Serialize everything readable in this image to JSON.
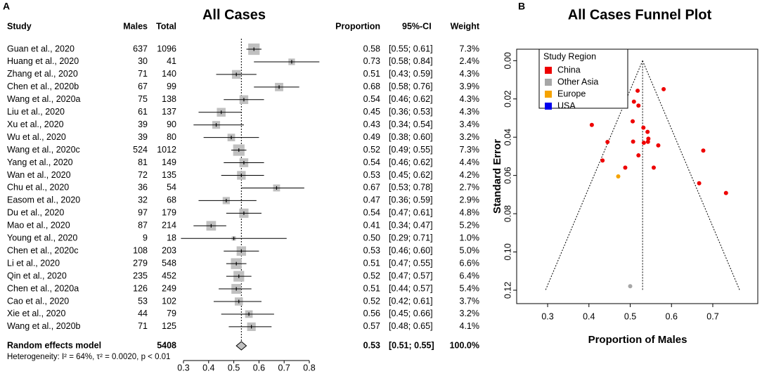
{
  "chart_data": [
    {
      "type": "forest",
      "panel": "A",
      "title": "All Cases",
      "columns": {
        "study": "Study",
        "males": "Males",
        "total": "Total",
        "proportion": "Proportion",
        "ci": "95%-CI",
        "weight": "Weight"
      },
      "categories": [
        "Guan et al., 2020",
        "Huang et al., 2020",
        "Zhang et al., 2020",
        "Chen et al., 2020b",
        "Wang et al., 2020a",
        "Liu et al., 2020",
        "Xu et al., 2020",
        "Wu et al., 2020",
        "Wang et al., 2020c",
        "Yang et al., 2020",
        "Wan et al., 2020",
        "Chu et al., 2020",
        "Easom et al., 2020",
        "Du et al., 2020",
        "Mao et al., 2020",
        "Young et al., 2020",
        "Chen et al., 2020c",
        "Li et al., 2020",
        "Qin et al., 2020",
        "Chen et al., 2020a",
        "Cao et al., 2020",
        "Xie et al., 2020",
        "Wang et al., 2020b"
      ],
      "males": [
        637,
        30,
        71,
        67,
        75,
        61,
        39,
        39,
        524,
        81,
        72,
        36,
        32,
        97,
        87,
        9,
        108,
        279,
        235,
        126,
        53,
        44,
        71
      ],
      "totals": [
        1096,
        41,
        140,
        99,
        138,
        137,
        90,
        80,
        1012,
        149,
        135,
        54,
        68,
        179,
        214,
        18,
        203,
        548,
        452,
        249,
        102,
        79,
        125
      ],
      "values": [
        0.58,
        0.73,
        0.51,
        0.68,
        0.54,
        0.45,
        0.43,
        0.49,
        0.52,
        0.54,
        0.53,
        0.67,
        0.47,
        0.54,
        0.41,
        0.5,
        0.53,
        0.51,
        0.52,
        0.51,
        0.52,
        0.56,
        0.57
      ],
      "value_labels": [
        "0.58",
        "0.73",
        "0.51",
        "0.68",
        "0.54",
        "0.45",
        "0.43",
        "0.49",
        "0.52",
        "0.54",
        "0.53",
        "0.67",
        "0.47",
        "0.54",
        "0.41",
        "0.50",
        "0.53",
        "0.51",
        "0.52",
        "0.51",
        "0.52",
        "0.56",
        "0.57"
      ],
      "ci_lower": [
        0.55,
        0.58,
        0.43,
        0.58,
        0.46,
        0.36,
        0.34,
        0.38,
        0.49,
        0.46,
        0.45,
        0.53,
        0.36,
        0.47,
        0.34,
        0.29,
        0.46,
        0.47,
        0.47,
        0.44,
        0.42,
        0.45,
        0.48
      ],
      "ci_upper": [
        0.61,
        0.84,
        0.59,
        0.76,
        0.62,
        0.53,
        0.54,
        0.6,
        0.55,
        0.62,
        0.62,
        0.78,
        0.59,
        0.61,
        0.47,
        0.71,
        0.6,
        0.55,
        0.57,
        0.57,
        0.61,
        0.66,
        0.65
      ],
      "ci_labels": [
        "[0.55; 0.61]",
        "[0.58; 0.84]",
        "[0.43; 0.59]",
        "[0.58; 0.76]",
        "[0.46; 0.62]",
        "[0.36; 0.53]",
        "[0.34; 0.54]",
        "[0.38; 0.60]",
        "[0.49; 0.55]",
        "[0.46; 0.62]",
        "[0.45; 0.62]",
        "[0.53; 0.78]",
        "[0.36; 0.59]",
        "[0.47; 0.61]",
        "[0.34; 0.47]",
        "[0.29; 0.71]",
        "[0.46; 0.60]",
        "[0.47; 0.55]",
        "[0.47; 0.57]",
        "[0.44; 0.57]",
        "[0.42; 0.61]",
        "[0.45; 0.66]",
        "[0.48; 0.65]"
      ],
      "weights": [
        7.3,
        2.4,
        4.3,
        3.9,
        4.3,
        4.3,
        3.4,
        3.2,
        7.3,
        4.4,
        4.2,
        2.7,
        2.9,
        4.8,
        5.2,
        1.0,
        5.0,
        6.6,
        6.4,
        5.4,
        3.7,
        3.2,
        4.1
      ],
      "weight_labels": [
        "7.3%",
        "2.4%",
        "4.3%",
        "3.9%",
        "4.3%",
        "4.3%",
        "3.4%",
        "3.2%",
        "7.3%",
        "4.4%",
        "4.2%",
        "2.7%",
        "2.9%",
        "4.8%",
        "5.2%",
        "1.0%",
        "5.0%",
        "6.6%",
        "6.4%",
        "5.4%",
        "3.7%",
        "3.2%",
        "4.1%"
      ],
      "pooled": {
        "name": "Random effects model",
        "total": 5408,
        "value": 0.53,
        "ci_lower": 0.51,
        "ci_upper": 0.55,
        "ci_label": "[0.51; 0.55]",
        "weight": 100.0,
        "weight_label": "100.0%"
      },
      "heterogeneity": "Heterogeneity: I² = 64%, τ² = 0.0020, p < 0.01",
      "xlim": [
        0.3,
        0.8
      ],
      "xticks": [
        0.3,
        0.4,
        0.5,
        0.6,
        0.7,
        0.8
      ],
      "color": "#c0c0c0"
    },
    {
      "type": "scatter",
      "panel": "B",
      "title": "All Cases Funnel Plot",
      "xlabel": "Proportion of Males",
      "ylabel": "Standard Error",
      "legend_title": "Study Region",
      "legend": "upper left",
      "reference_x": 0.53,
      "xlim": [
        0.225,
        0.809
      ],
      "xticks": [
        0.3,
        0.4,
        0.5,
        0.6,
        0.7
      ],
      "ylim": [
        -0.006,
        0.127
      ],
      "y_inverted": true,
      "yticks": [
        {
          "value": 0,
          "label": "0.00"
        },
        0.02,
        0.04,
        0.06,
        0.08,
        {
          "value": 0.1,
          "label": "0.10"
        },
        0.12
      ],
      "series": [
        {
          "name": "China",
          "color": "#ee0000",
          "x": [
            0.581,
            0.732,
            0.507,
            0.677,
            0.543,
            0.445,
            0.433,
            0.488,
            0.518,
            0.544,
            0.533,
            0.667,
            0.542,
            0.407,
            0.532,
            0.509,
            0.52,
            0.506,
            0.52,
            0.557,
            0.568
          ],
          "values": [
            0.0149,
            0.0692,
            0.0423,
            0.047,
            0.0424,
            0.0425,
            0.0522,
            0.0559,
            0.0157,
            0.0408,
            0.0429,
            0.0641,
            0.0372,
            0.0336,
            0.035,
            0.0214,
            0.0235,
            0.0317,
            0.0495,
            0.0559,
            0.0443
          ]
        },
        {
          "name": "Other Asia",
          "color": "#a6a6a6",
          "x": [
            0.5
          ],
          "values": [
            0.1179
          ]
        },
        {
          "name": "Europe",
          "color": "#f5a300",
          "x": [
            0.471
          ],
          "values": [
            0.0605
          ]
        },
        {
          "name": "USA",
          "color": "#0000ee",
          "x": [],
          "values": []
        }
      ]
    }
  ]
}
